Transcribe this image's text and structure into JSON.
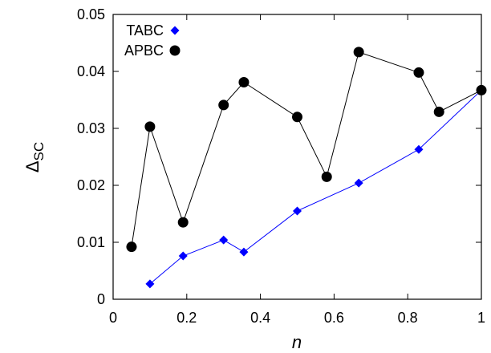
{
  "chart_data": {
    "type": "line",
    "xlabel": "n",
    "ylabel_main": "Δ",
    "ylabel_sub": "SC",
    "xlim": [
      0,
      1
    ],
    "ylim": [
      0,
      0.05
    ],
    "x_ticks": [
      0,
      0.2,
      0.4,
      0.6,
      0.8,
      1
    ],
    "x_tick_labels": [
      "0",
      "0.2",
      "0.4",
      "0.6",
      "0.8",
      "1"
    ],
    "y_ticks": [
      0,
      0.01,
      0.02,
      0.03,
      0.04,
      0.05
    ],
    "y_tick_labels": [
      "0",
      "0.01",
      "0.02",
      "0.03",
      "0.04",
      "0.05"
    ],
    "grid": false,
    "legend_position": "top-left",
    "series": [
      {
        "name": "TABC",
        "color": "#0000ff",
        "marker": "diamond",
        "points": [
          [
            0.1,
            0.0027
          ],
          [
            0.19,
            0.0076
          ],
          [
            0.3,
            0.0104
          ],
          [
            0.355,
            0.0083
          ],
          [
            0.5,
            0.0155
          ],
          [
            0.667,
            0.0204
          ],
          [
            0.83,
            0.0263
          ],
          [
            1.0,
            0.0367
          ]
        ]
      },
      {
        "name": "APBC",
        "color": "#000000",
        "marker": "circle",
        "points": [
          [
            0.05,
            0.0092
          ],
          [
            0.1,
            0.0303
          ],
          [
            0.19,
            0.0135
          ],
          [
            0.3,
            0.0341
          ],
          [
            0.355,
            0.0381
          ],
          [
            0.5,
            0.032
          ],
          [
            0.58,
            0.0215
          ],
          [
            0.667,
            0.0434
          ],
          [
            0.83,
            0.0398
          ],
          [
            0.885,
            0.0329
          ],
          [
            1.0,
            0.0367
          ]
        ]
      }
    ]
  }
}
